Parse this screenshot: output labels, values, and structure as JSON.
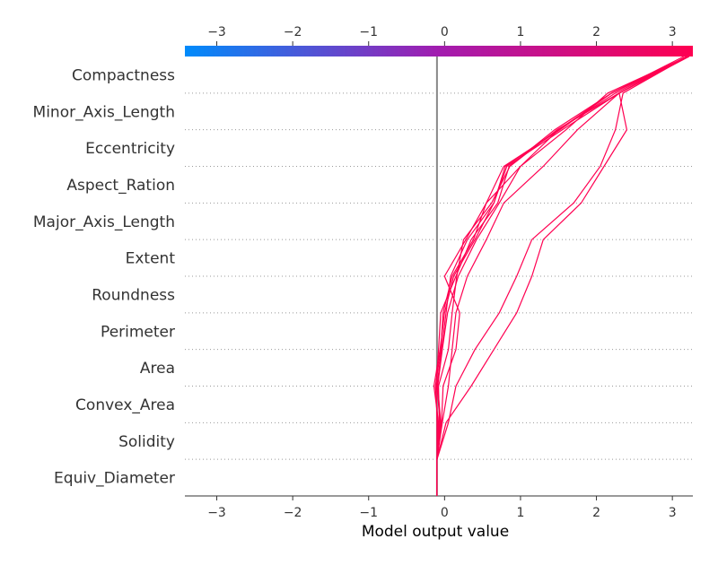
{
  "chart_data": {
    "type": "line",
    "title": "",
    "xlabel": "Model output value",
    "ylabel": "",
    "xlim": [
      -3.42,
      3.27
    ],
    "base_value": -0.1,
    "x_ticks": [
      -3,
      -2,
      -1,
      0,
      1,
      2,
      3
    ],
    "x_tick_labels": [
      "−3",
      "−2",
      "−1",
      "0",
      "1",
      "2",
      "3"
    ],
    "features": [
      "Equiv_Diameter",
      "Solidity",
      "Convex_Area",
      "Area",
      "Perimeter",
      "Roundness",
      "Extent",
      "Major_Axis_Length",
      "Aspect_Ration",
      "Eccentricity",
      "Minor_Axis_Length",
      "Compactness"
    ],
    "grid": "dotted horizontal lines between feature rows",
    "colorbar": {
      "position": "top",
      "from": "#008bfb",
      "mid": "#a21caf",
      "to": "#ff0051"
    },
    "line_color": "#ff0051",
    "series": [
      {
        "values": [
          -0.1,
          -0.08,
          -0.14,
          -0.06,
          0.0,
          0.12,
          0.4,
          0.65,
          0.8,
          1.5,
          2.25,
          3.2
        ]
      },
      {
        "values": [
          -0.1,
          -0.1,
          -0.11,
          -0.08,
          -0.05,
          0.15,
          0.35,
          0.7,
          0.85,
          1.45,
          2.2,
          3.2
        ]
      },
      {
        "values": [
          -0.1,
          -0.06,
          -0.1,
          -0.04,
          0.02,
          0.08,
          0.3,
          0.65,
          0.82,
          1.55,
          2.3,
          3.2
        ]
      },
      {
        "values": [
          -0.1,
          -0.05,
          -0.09,
          -0.03,
          0.04,
          0.18,
          0.42,
          0.72,
          1.0,
          1.6,
          2.15,
          3.2
        ]
      },
      {
        "values": [
          -0.1,
          -0.09,
          -0.12,
          -0.05,
          -0.02,
          0.1,
          0.38,
          0.55,
          0.78,
          1.52,
          2.2,
          3.15
        ]
      },
      {
        "values": [
          -0.1,
          -0.07,
          -0.08,
          0.05,
          0.1,
          0.16,
          0.25,
          0.62,
          0.86,
          1.48,
          2.3,
          3.18
        ]
      },
      {
        "values": [
          -0.1,
          -0.04,
          -0.02,
          0.15,
          0.2,
          0.0,
          0.28,
          0.55,
          1.0,
          1.5,
          2.2,
          3.22
        ]
      },
      {
        "values": [
          -0.1,
          -0.03,
          0.05,
          0.1,
          0.15,
          0.3,
          0.55,
          0.78,
          1.3,
          1.75,
          2.3,
          3.2
        ]
      },
      {
        "values": [
          -0.1,
          0.05,
          0.15,
          0.4,
          0.72,
          0.95,
          1.15,
          1.7,
          2.05,
          2.25,
          2.35,
          3.2
        ]
      },
      {
        "values": [
          -0.1,
          0.02,
          0.35,
          0.65,
          0.95,
          1.15,
          1.3,
          1.8,
          2.1,
          2.4,
          2.3,
          3.22
        ]
      }
    ]
  }
}
